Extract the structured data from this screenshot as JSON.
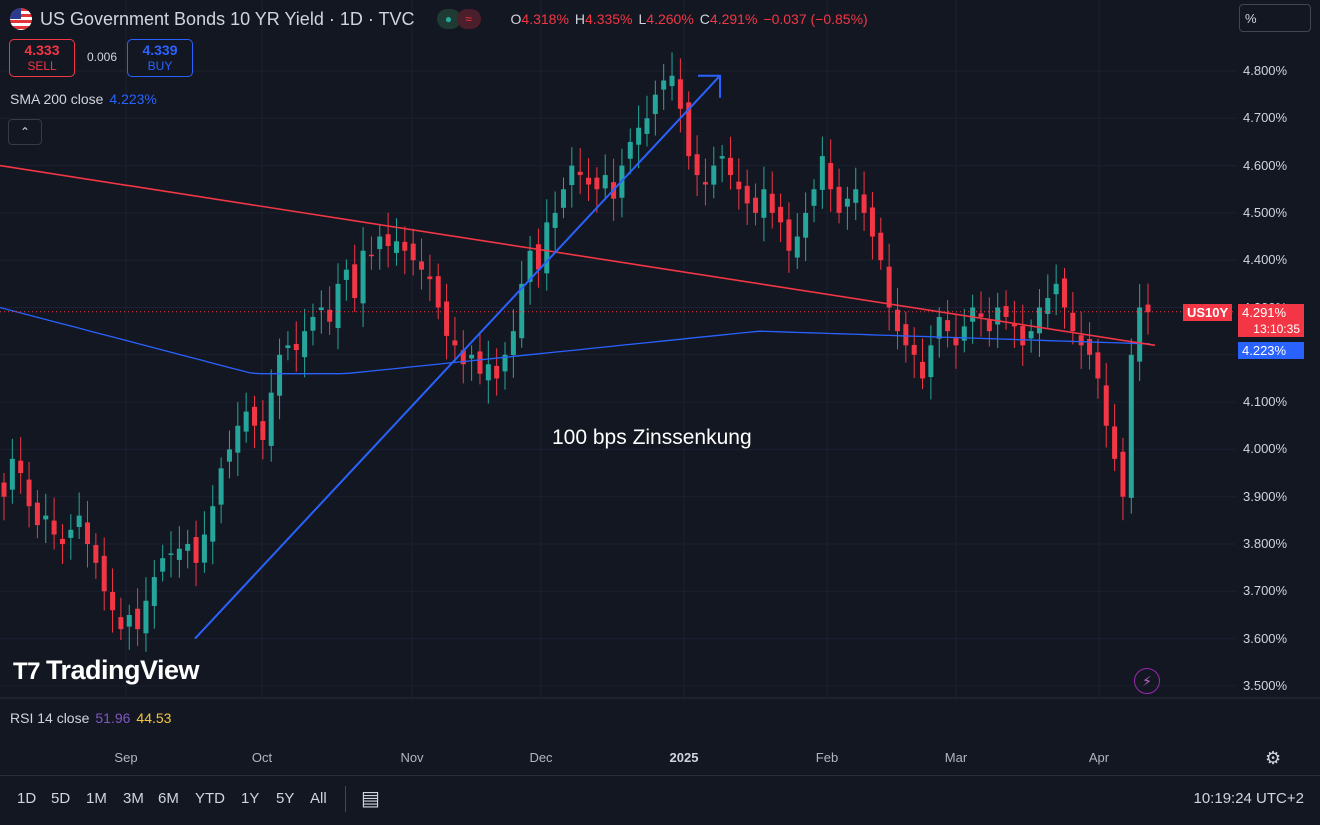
{
  "header": {
    "title": "US Government Bonds 10 YR Yield · 1D · TVC",
    "ohlc": [
      {
        "k": "O",
        "v": "4.318%"
      },
      {
        "k": "H",
        "v": "4.335%"
      },
      {
        "k": "L",
        "v": "4.260%"
      },
      {
        "k": "C",
        "v": "4.291%"
      },
      {
        "k": "",
        "v": "−0.037 (−0.85%)"
      }
    ]
  },
  "trade": {
    "sell_price": "4.333",
    "sell_label": "SELL",
    "spread": "0.006",
    "buy_price": "4.339",
    "buy_label": "BUY"
  },
  "indicators": {
    "sma_label": "SMA 200 close",
    "sma_value": "4.223%",
    "rsi_label": "RSI 14 close",
    "rsi_value1": "51.96",
    "rsi_value2": "44.53"
  },
  "scale_unit": "%",
  "annotation": "100 bps Zinssenkung",
  "branding": "TradingView",
  "price_tags": {
    "symbol": "US10Y",
    "last": "4.291%",
    "countdown": "13:10:35",
    "sma": "4.223%"
  },
  "colors": {
    "bg": "#131722",
    "up": "#26a69a",
    "down": "#f23645",
    "sma": "#2962ff",
    "trend_line": "#f23645",
    "arrow": "#2962ff"
  },
  "y_axis_labels": [
    "4.800%",
    "4.700%",
    "4.600%",
    "4.500%",
    "4.400%",
    "4.300%",
    "4.200%",
    "4.100%",
    "4.000%",
    "3.900%",
    "3.800%",
    "3.700%",
    "3.600%",
    "3.500%"
  ],
  "x_axis_labels": [
    {
      "t": "Sep",
      "bold": false
    },
    {
      "t": "Oct",
      "bold": false
    },
    {
      "t": "Nov",
      "bold": false
    },
    {
      "t": "Dec",
      "bold": false
    },
    {
      "t": "2025",
      "bold": true
    },
    {
      "t": "Feb",
      "bold": false
    },
    {
      "t": "Mar",
      "bold": false
    },
    {
      "t": "Apr",
      "bold": false
    }
  ],
  "ranges": [
    "1D",
    "5D",
    "1M",
    "3M",
    "6M",
    "YTD",
    "1Y",
    "5Y",
    "All"
  ],
  "clock": "10:19:24 UTC+2",
  "icons": {
    "settings": "gear-icon",
    "compare": "calendar-range-icon",
    "alert": "bolt-icon",
    "collapse": "chevron-up-icon"
  },
  "chart_data": {
    "type": "candlestick",
    "ylim": [
      3.5,
      4.82
    ],
    "unit": "%",
    "close_path": [
      3.9,
      3.98,
      3.95,
      3.88,
      3.84,
      3.86,
      3.82,
      3.8,
      3.83,
      3.86,
      3.8,
      3.76,
      3.7,
      3.66,
      3.62,
      3.65,
      3.62,
      3.68,
      3.73,
      3.77,
      3.78,
      3.79,
      3.8,
      3.76,
      3.82,
      3.88,
      3.96,
      4.0,
      4.05,
      4.08,
      4.05,
      4.02,
      4.12,
      4.2,
      4.22,
      4.21,
      4.25,
      4.28,
      4.3,
      4.27,
      4.35,
      4.38,
      4.32,
      4.42,
      4.41,
      4.45,
      4.43,
      4.44,
      4.42,
      4.4,
      4.38,
      4.36,
      4.3,
      4.24,
      4.22,
      4.18,
      4.2,
      4.16,
      4.18,
      4.15,
      4.2,
      4.25,
      4.35,
      4.42,
      4.38,
      4.48,
      4.5,
      4.55,
      4.6,
      4.58,
      4.56,
      4.55,
      4.58,
      4.53,
      4.6,
      4.65,
      4.68,
      4.7,
      4.75,
      4.78,
      4.79,
      4.72,
      4.62,
      4.58,
      4.56,
      4.6,
      4.62,
      4.58,
      4.55,
      4.52,
      4.5,
      4.55,
      4.5,
      4.48,
      4.42,
      4.45,
      4.5,
      4.55,
      4.62,
      4.55,
      4.5,
      4.53,
      4.55,
      4.5,
      4.45,
      4.4,
      4.3,
      4.25,
      4.22,
      4.2,
      4.15,
      4.22,
      4.28,
      4.25,
      4.22,
      4.26,
      4.3,
      4.28,
      4.25,
      4.3,
      4.28,
      4.26,
      4.22,
      4.25,
      4.3,
      4.32,
      4.35,
      4.3,
      4.25,
      4.22,
      4.2,
      4.15,
      4.05,
      3.98,
      3.9,
      4.2,
      4.3,
      4.29
    ],
    "sma200": {
      "start": 4.3,
      "min": 4.16,
      "end": 4.223
    },
    "trend_line": {
      "from": 4.6,
      "to": 4.22
    },
    "arrow": {
      "from": 3.6,
      "to": 4.79
    }
  }
}
